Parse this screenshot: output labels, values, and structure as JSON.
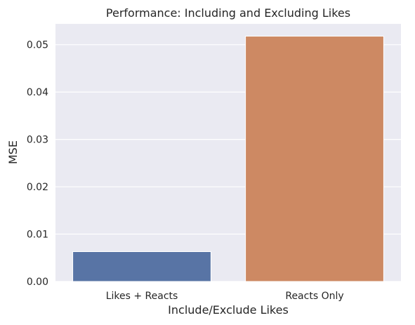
{
  "chart_data": {
    "type": "bar",
    "title": "Performance: Including and Excluding Likes",
    "xlabel": "Include/Exclude Likes",
    "ylabel": "MSE",
    "categories": [
      "Likes + Reacts",
      "Reacts Only"
    ],
    "values": [
      0.0063,
      0.0518
    ],
    "ylim": [
      0,
      0.0544
    ],
    "yticks": [
      0.0,
      0.01,
      0.02,
      0.03,
      0.04,
      0.05
    ],
    "ytick_labels": [
      "0.00",
      "0.01",
      "0.02",
      "0.03",
      "0.04",
      "0.05"
    ],
    "grid": true,
    "legend": "none",
    "colors": {
      "plot_background": "#eaeaf2",
      "gridline": "#ffffff",
      "bar_1": "#5874a5",
      "bar_2": "#cd8963",
      "bar_edge": "#ffffff"
    }
  }
}
